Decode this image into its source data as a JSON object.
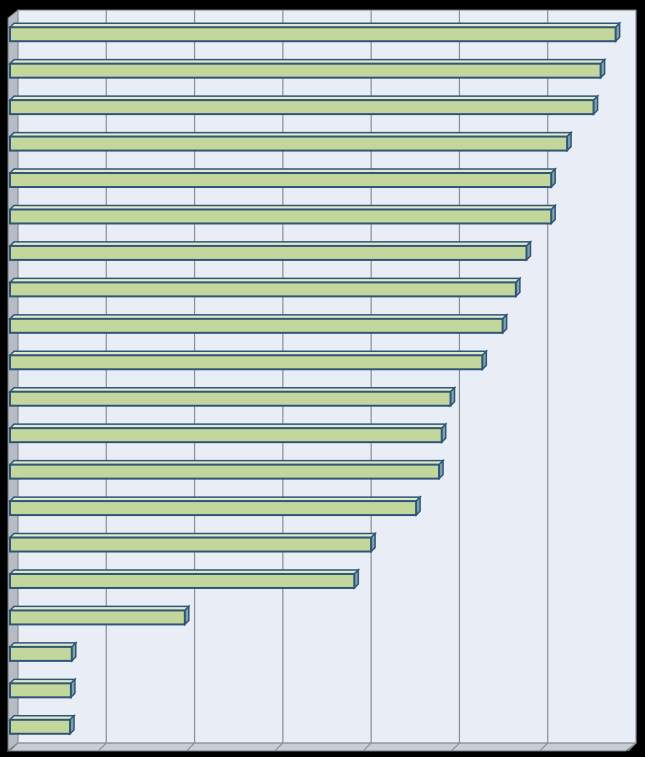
{
  "chart_data": {
    "type": "bar",
    "orientation": "horizontal",
    "categories": [
      null,
      null,
      null,
      null,
      null,
      null,
      null,
      null,
      null,
      null,
      null,
      null,
      null,
      null,
      null,
      null,
      null,
      null,
      null,
      null
    ],
    "values": [
      6.86,
      6.69,
      6.61,
      6.31,
      6.13,
      6.13,
      5.85,
      5.73,
      5.58,
      5.35,
      4.99,
      4.89,
      4.86,
      4.6,
      4.09,
      3.9,
      1.98,
      0.7,
      0.69,
      0.68
    ],
    "color": "#c3d69b",
    "xlim": [
      0,
      7
    ],
    "xticks": [
      0,
      1,
      2,
      3,
      4,
      5,
      6,
      7
    ],
    "grid": true
  }
}
